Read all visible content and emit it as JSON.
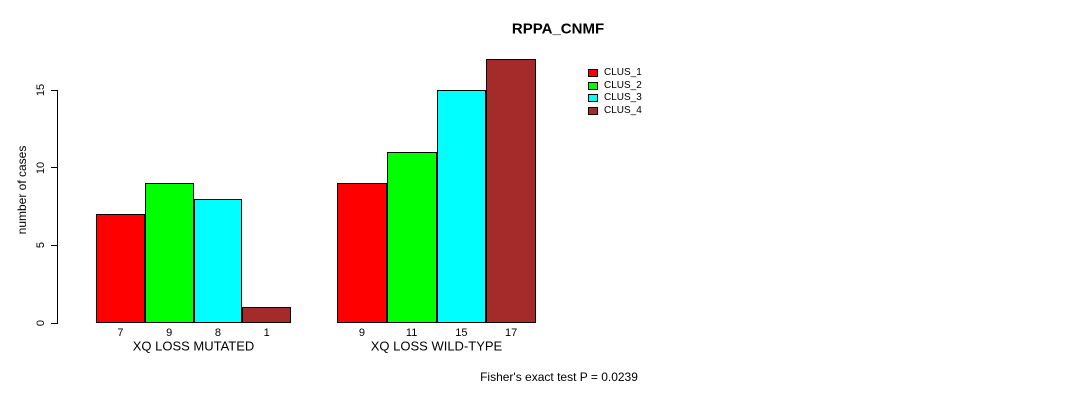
{
  "chart_data": {
    "type": "bar",
    "title": "RPPA_CNMF",
    "ylabel": "number of cases",
    "xlabel": "",
    "ylim": [
      0,
      17
    ],
    "yticks": [
      0,
      5,
      10,
      15
    ],
    "grid": false,
    "legend_position": "top-right",
    "bar_value_labels": true,
    "categories": [
      "XQ LOSS MUTATED",
      "XQ LOSS WILD-TYPE"
    ],
    "series": [
      {
        "name": "CLUS_1",
        "color": "#FF0000",
        "values": [
          7,
          9
        ]
      },
      {
        "name": "CLUS_2",
        "color": "#00FF00",
        "values": [
          9,
          11
        ]
      },
      {
        "name": "CLUS_3",
        "color": "#00FFFF",
        "values": [
          8,
          15
        ]
      },
      {
        "name": "CLUS_4",
        "color": "#A52A2A",
        "values": [
          1,
          17
        ]
      }
    ],
    "annotation": "Fisher's exact test P = 0.0239"
  },
  "colors": {
    "background": "#FFFFFF",
    "axis": "#000000",
    "text": "#000000"
  }
}
